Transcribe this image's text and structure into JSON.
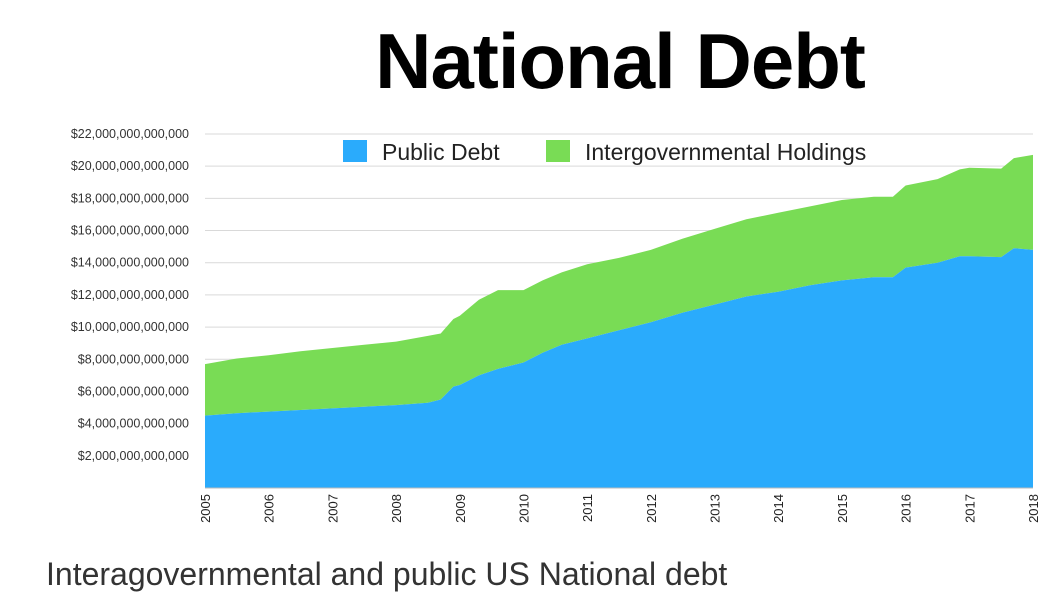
{
  "caption": "Interagovernmental and public US National debt",
  "colors": {
    "public": "#2aabfc",
    "intergov": "#79dc55",
    "grid": "#d9d9d9"
  },
  "chart_data": {
    "type": "area",
    "stacked": true,
    "title": "National Debt",
    "xlabel": "",
    "ylabel": "",
    "ylim": [
      0,
      22000000000000
    ],
    "yticks": [
      2000000000000,
      4000000000000,
      6000000000000,
      8000000000000,
      10000000000000,
      12000000000000,
      14000000000000,
      16000000000000,
      18000000000000,
      20000000000000,
      22000000000000
    ],
    "ytick_labels": [
      "$2,000,000,000,000",
      "$4,000,000,000,000",
      "$6,000,000,000,000",
      "$8,000,000,000,000",
      "$10,000,000,000,000",
      "$12,000,000,000,000",
      "$14,000,000,000,000",
      "$16,000,000,000,000",
      "$18,000,000,000,000",
      "$20,000,000,000,000",
      "$22,000,000,000,000"
    ],
    "xlim": [
      2005,
      2018
    ],
    "xticks": [
      "2005",
      "2006",
      "2007",
      "2008",
      "2009",
      "2010",
      "2011",
      "2012",
      "2013",
      "2014",
      "2015",
      "2016",
      "2017",
      "2018"
    ],
    "grid": true,
    "legend_position": "top",
    "x": [
      2005.0,
      2005.5,
      2006.0,
      2006.5,
      2007.0,
      2007.5,
      2008.0,
      2008.5,
      2008.7,
      2008.9,
      2009.0,
      2009.3,
      2009.6,
      2010.0,
      2010.3,
      2010.6,
      2011.0,
      2011.5,
      2012.0,
      2012.5,
      2013.0,
      2013.5,
      2014.0,
      2014.5,
      2015.0,
      2015.5,
      2015.8,
      2016.0,
      2016.5,
      2016.85,
      2017.0,
      2017.5,
      2017.7,
      2018.0
    ],
    "series": [
      {
        "name": "Public Debt",
        "values": [
          4500000000000,
          4650000000000,
          4750000000000,
          4850000000000,
          4950000000000,
          5050000000000,
          5150000000000,
          5300000000000,
          5500000000000,
          6300000000000,
          6400000000000,
          7000000000000,
          7400000000000,
          7800000000000,
          8400000000000,
          8900000000000,
          9300000000000,
          9800000000000,
          10300000000000,
          10900000000000,
          11400000000000,
          11900000000000,
          12200000000000,
          12600000000000,
          12900000000000,
          13100000000000,
          13100000000000,
          13700000000000,
          14000000000000,
          14400000000000,
          14400000000000,
          14350000000000,
          14900000000000,
          14800000000000
        ]
      },
      {
        "name": "Intergovernmental Holdings",
        "values": [
          3200000000000,
          3400000000000,
          3500000000000,
          3650000000000,
          3750000000000,
          3850000000000,
          3950000000000,
          4150000000000,
          4100000000000,
          4200000000000,
          4300000000000,
          4700000000000,
          4900000000000,
          4500000000000,
          4500000000000,
          4500000000000,
          4600000000000,
          4500000000000,
          4500000000000,
          4600000000000,
          4700000000000,
          4800000000000,
          4900000000000,
          4900000000000,
          5000000000000,
          5000000000000,
          5000000000000,
          5100000000000,
          5200000000000,
          5400000000000,
          5500000000000,
          5500000000000,
          5600000000000,
          5900000000000
        ]
      }
    ]
  }
}
